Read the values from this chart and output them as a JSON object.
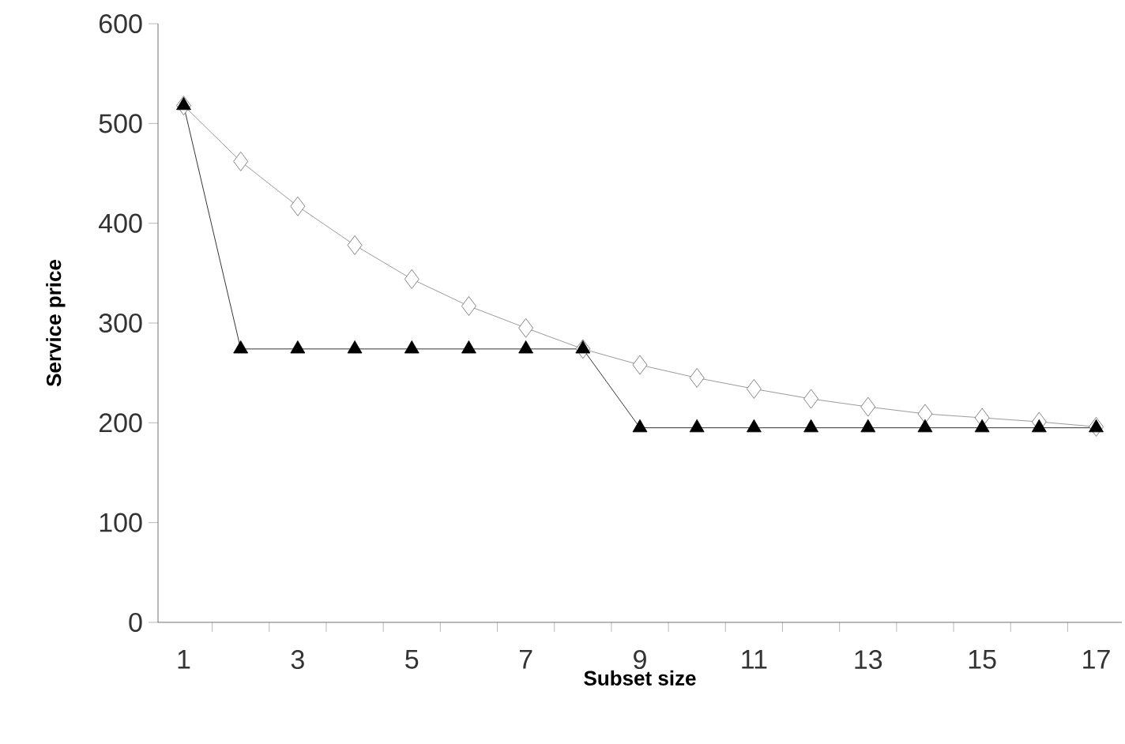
{
  "chart_data": {
    "type": "line",
    "xlabel": "Subset size",
    "ylabel": "Service price",
    "categories": [
      "1",
      null,
      "3",
      null,
      "5",
      null,
      "7",
      null,
      "9",
      null,
      "11",
      null,
      "13",
      null,
      "15",
      null,
      "17"
    ],
    "ylim": [
      0,
      600
    ],
    "yticks": [
      0,
      100,
      200,
      300,
      400,
      500,
      600
    ],
    "series": [
      {
        "color": "#808080",
        "marker": "diamond",
        "values": [
          518,
          462,
          417,
          378,
          344,
          317,
          295,
          274,
          258,
          245,
          234,
          224,
          216,
          209,
          205,
          201,
          196
        ]
      },
      {
        "color": "#000000",
        "marker": "triangle",
        "values": [
          518,
          274,
          274,
          274,
          274,
          274,
          274,
          274,
          195,
          195,
          195,
          195,
          195,
          195,
          195,
          195,
          195
        ]
      }
    ]
  }
}
